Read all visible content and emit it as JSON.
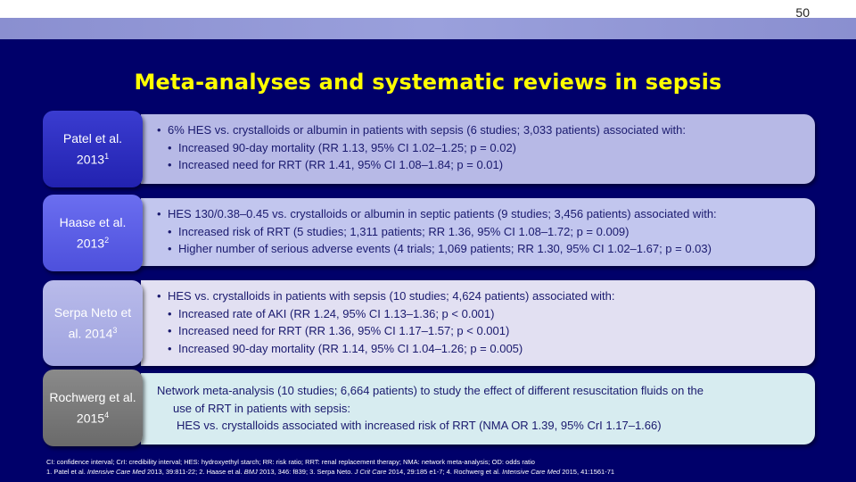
{
  "slide_number": "50",
  "title": "Meta-analyses and systematic reviews in sepsis",
  "rows": [
    {
      "label": "Patel et al. 2013",
      "label_sup": "1",
      "lines": [
        "6% HES vs. crystalloids or albumin in patients with sepsis (6 studies; 3,033 patients) associated with:",
        "Increased 90-day mortality (RR 1.13, 95% CI 1.02–1.25; p = 0.02)",
        "Increased need for RRT (RR 1.41, 95% CI 1.08–1.84; p = 0.01)"
      ]
    },
    {
      "label": "Haase et al. 2013",
      "label_sup": "2",
      "lines": [
        "HES 130/0.38–0.45 vs. crystalloids or albumin in septic patients (9 studies; 3,456 patients) associated with:",
        "Increased risk of RRT (5 studies; 1,311 patients; RR 1.36, 95% CI 1.08–1.72; p = 0.009)",
        "Higher number of serious adverse events (4 trials; 1,069 patients; RR 1.30, 95% CI 1.02–1.67; p = 0.03)"
      ]
    },
    {
      "label": "Serpa Neto et al. 2014",
      "label_sup": "3",
      "lines": [
        "HES vs. crystalloids in patients with sepsis (10 studies; 4,624 patients) associated with:",
        "Increased rate of AKI (RR 1.24, 95% CI 1.13–1.36; p < 0.001)",
        "Increased need for RRT (RR 1.36, 95% CI 1.17–1.57; p < 0.001)",
        "Increased 90-day mortality (RR 1.14, 95% CI 1.04–1.26; p = 0.005)"
      ]
    },
    {
      "label": "Rochwerg et al. 2015",
      "label_sup": "4",
      "lines": [
        "Network meta-analysis (10 studies; 6,664 patients) to study the effect of different resuscitation fluids on the",
        "use of RRT in patients with sepsis:",
        "HES vs. crystalloids associated with increased risk of RRT (NMA OR 1.39, 95% CrI 1.17–1.66)"
      ]
    }
  ],
  "footnotes": {
    "abbreviations": "CI: confidence interval; CrI: credibility interval; HES: hydroxyethyl starch; RR: risk ratio; RRT: renal replacement therapy; NMA: network meta-analysis; OD: odds ratio",
    "ref1_pre": "1. Patel et al.",
    "ref1_journal": "Intensive Care Med",
    "ref1_post": "2013, 39:811-22; 2. Haase et al.",
    "ref2_journal": "BMJ",
    "ref2_post": "2013, 346: f839; 3. Serpa Neto.",
    "ref3_journal": "J Crit Care",
    "ref3_post": "2014, 29:185 e1-7; 4. Rochwerg et al.",
    "ref4_journal": "Intensive Care Med",
    "ref4_post": "2015, 41:1561-71"
  }
}
